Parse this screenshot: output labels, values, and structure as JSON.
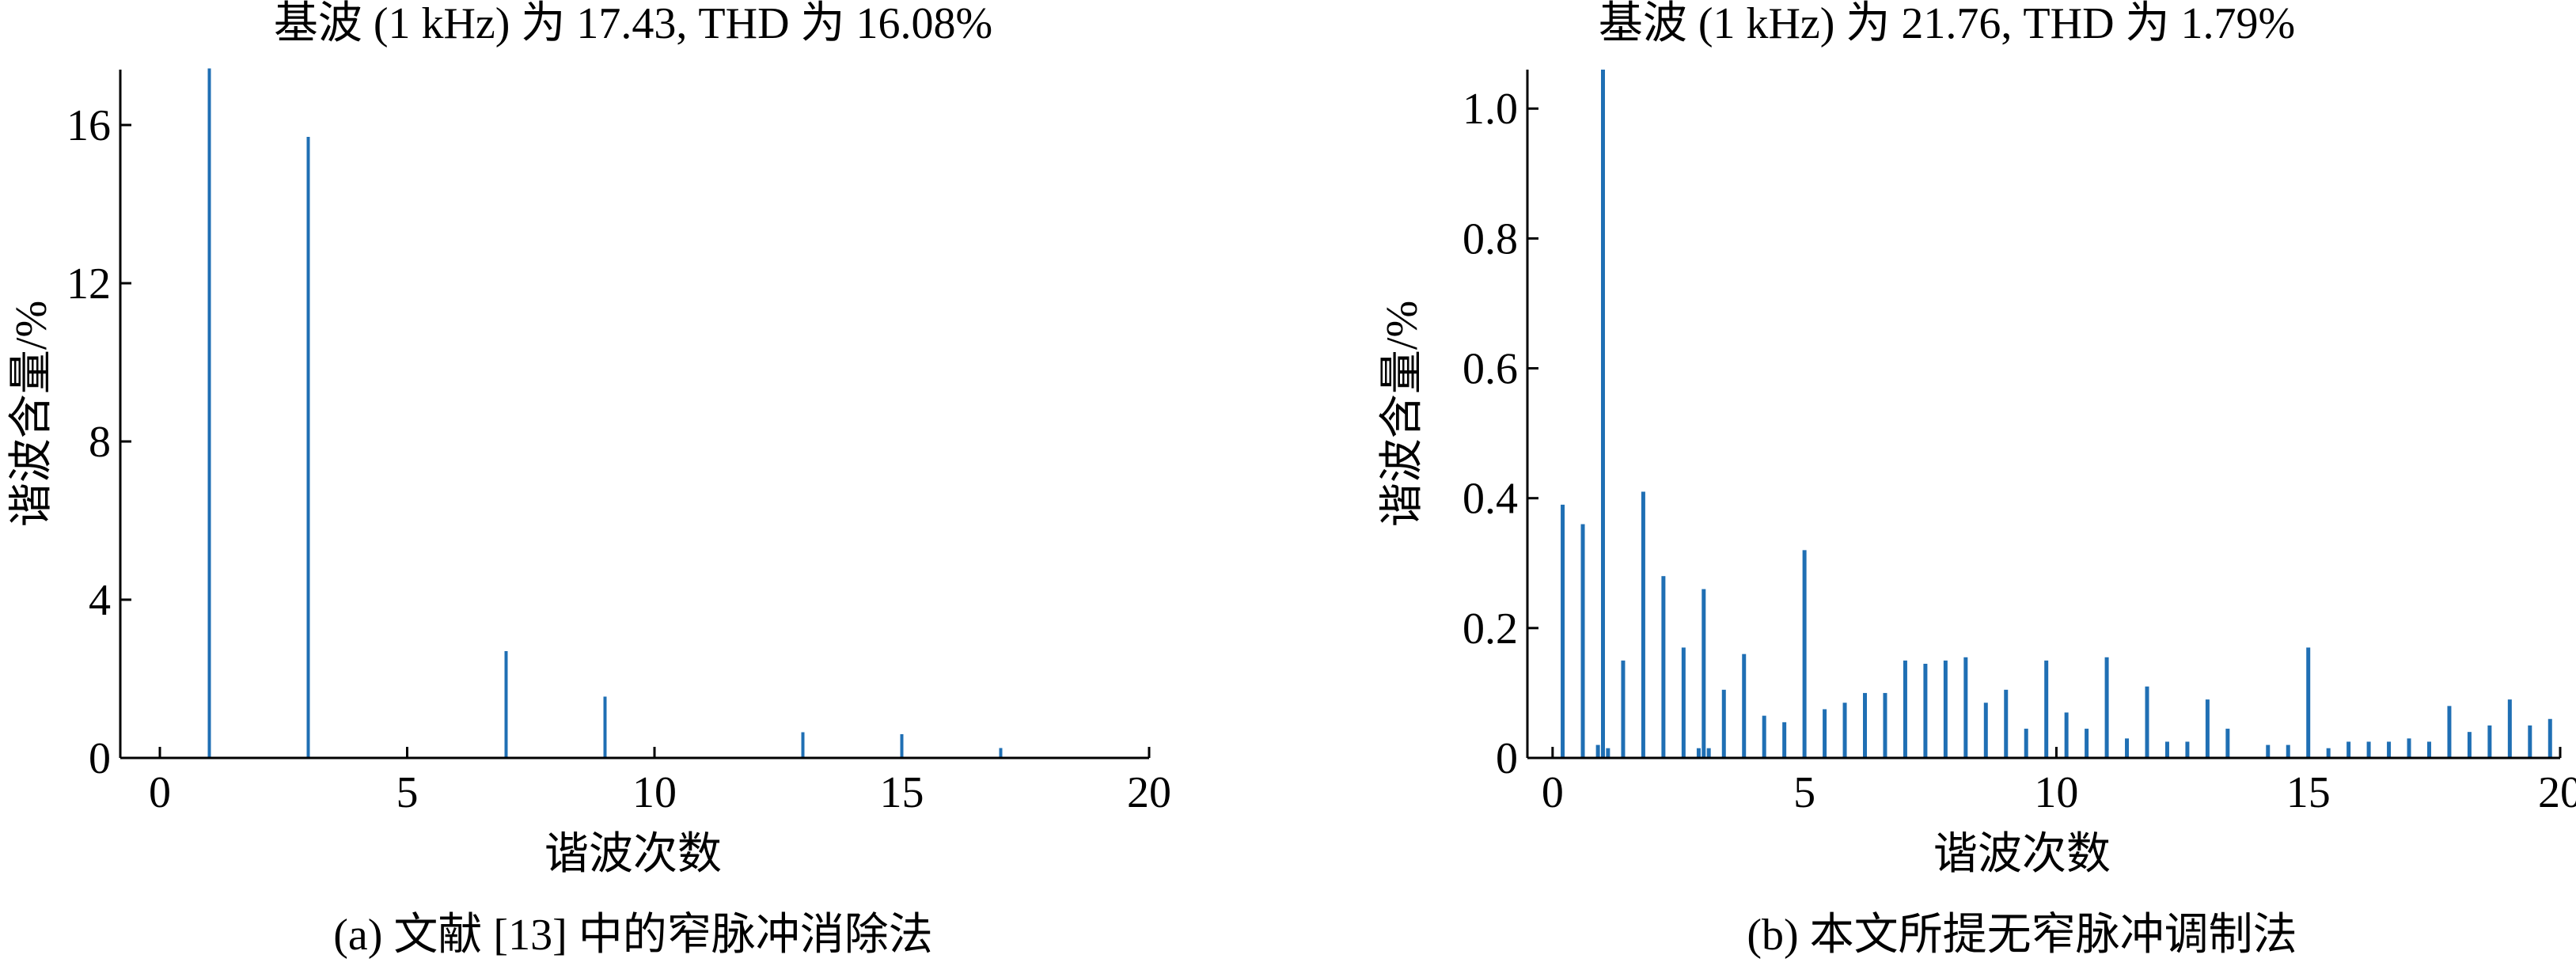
{
  "chart_data": [
    {
      "type": "bar",
      "title": "基波 (1 kHz) 为 17.43, THD 为 16.08%",
      "xlabel": "谐波次数",
      "ylabel": "谐波含量/%",
      "caption": "(a)  文献 [13] 中的窄脉冲消除法",
      "xlim": [
        -0.8,
        20
      ],
      "ylim": [
        0,
        17.4
      ],
      "xticks": [
        0,
        5,
        10,
        15,
        20
      ],
      "yticks": [
        0,
        4,
        8,
        12,
        16
      ],
      "ytick_labels": [
        "0",
        "4",
        "8",
        "12",
        "16"
      ],
      "color": "#1f6fb4",
      "x": [
        1,
        3,
        7,
        9,
        13,
        15,
        17
      ],
      "values": [
        17.43,
        15.7,
        2.7,
        1.55,
        0.65,
        0.6,
        0.25
      ]
    },
    {
      "type": "bar",
      "title": "基波 (1 kHz) 为 21.76, THD 为 1.79%",
      "xlabel": "谐波次数",
      "ylabel": "谐波含量/%",
      "caption": "(b)  本文所提无窄脉冲调制法",
      "xlim": [
        -0.5,
        20
      ],
      "ylim": [
        0,
        1.06
      ],
      "xticks": [
        0,
        5,
        10,
        15,
        20
      ],
      "yticks": [
        0,
        0.2,
        0.4,
        0.6,
        0.8,
        1.0
      ],
      "ytick_labels": [
        "0",
        "0.2",
        "0.4",
        "0.6",
        "0.8",
        "1.0"
      ],
      "color": "#1f6fb4",
      "x": [
        0.2,
        0.6,
        0.9,
        1.0,
        1.1,
        1.4,
        1.8,
        2.2,
        2.6,
        2.9,
        3.0,
        3.1,
        3.4,
        3.8,
        4.2,
        4.6,
        5.0,
        5.4,
        5.8,
        6.2,
        6.6,
        7.0,
        7.4,
        7.8,
        8.2,
        8.6,
        9.0,
        9.4,
        9.8,
        10.2,
        10.6,
        11.0,
        11.4,
        11.8,
        12.2,
        12.6,
        13.0,
        13.4,
        14.2,
        14.6,
        15.0,
        15.4,
        15.8,
        16.2,
        16.6,
        17.0,
        17.4,
        17.8,
        18.2,
        18.6,
        19.0,
        19.4,
        19.8
      ],
      "values": [
        0.39,
        0.36,
        0.02,
        1.06,
        0.015,
        0.15,
        0.41,
        0.28,
        0.17,
        0.015,
        0.26,
        0.015,
        0.105,
        0.16,
        0.065,
        0.055,
        0.32,
        0.075,
        0.085,
        0.1,
        0.1,
        0.15,
        0.145,
        0.15,
        0.155,
        0.085,
        0.105,
        0.045,
        0.15,
        0.07,
        0.045,
        0.155,
        0.03,
        0.11,
        0.025,
        0.025,
        0.09,
        0.045,
        0.02,
        0.02,
        0.17,
        0.015,
        0.025,
        0.025,
        0.025,
        0.03,
        0.025,
        0.08,
        0.04,
        0.05,
        0.09,
        0.05,
        0.06
      ]
    }
  ]
}
